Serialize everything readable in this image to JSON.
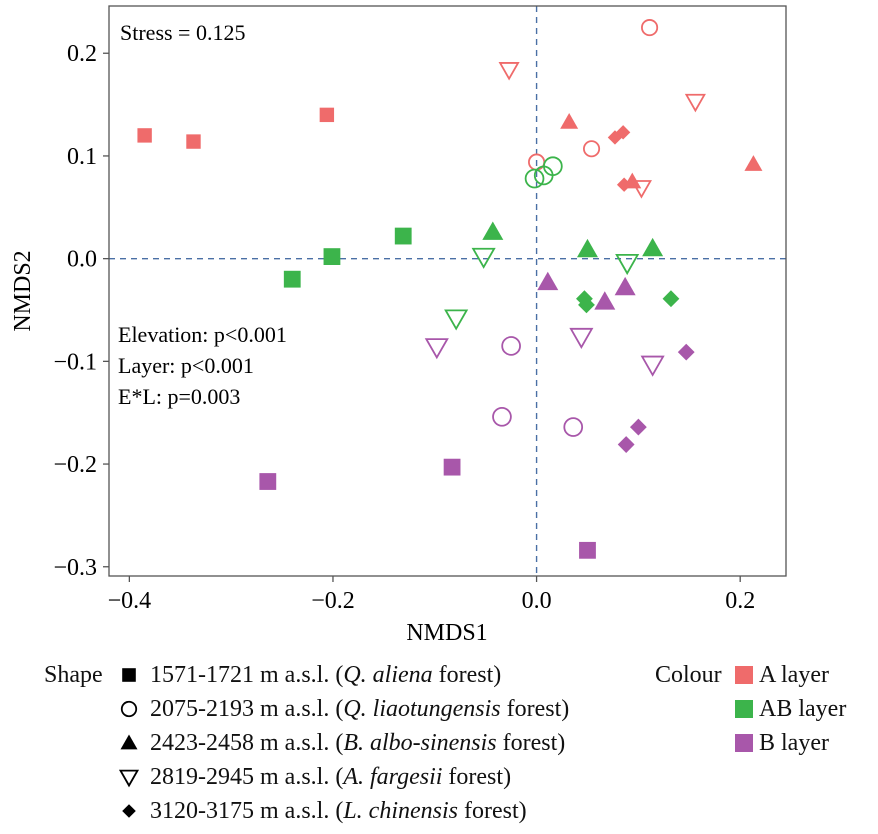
{
  "chart_data": {
    "type": "scatter",
    "title": "",
    "xlabel": "NMDS1",
    "ylabel": "NMDS2",
    "xlim": [
      -0.42,
      0.245
    ],
    "ylim": [
      -0.309,
      0.246
    ],
    "xticks": [
      -0.4,
      -0.2,
      0.0,
      0.2
    ],
    "xtick_labels": [
      "−0.4",
      "−0.2",
      "0.0",
      "0.2"
    ],
    "yticks": [
      -0.3,
      -0.2,
      -0.1,
      0.0,
      0.1,
      0.2
    ],
    "ytick_labels": [
      "−0.3",
      "−0.2",
      "−0.1",
      "0.0",
      "0.1",
      "0.2"
    ],
    "grid": false,
    "reference_lines": {
      "x": 0.0,
      "y": 0.0,
      "style": "dashed",
      "color": "#4a6fa5"
    },
    "annotations": {
      "stress": "Stress = 0.125",
      "elevation": "Elevation: p<0.001",
      "layer": "Layer: p<0.001",
      "interaction": "E*L: p=0.003"
    },
    "colors": {
      "A": "#ef6b6b",
      "AB": "#3cb44b",
      "B": "#a857aa"
    },
    "points": [
      {
        "layer": "A",
        "shape": "square",
        "x": -0.385,
        "y": 0.12
      },
      {
        "layer": "A",
        "shape": "square",
        "x": -0.337,
        "y": 0.114
      },
      {
        "layer": "A",
        "shape": "square",
        "x": -0.206,
        "y": 0.14
      },
      {
        "layer": "A",
        "shape": "circle",
        "x": 0.111,
        "y": 0.225
      },
      {
        "layer": "A",
        "shape": "circle",
        "x": 0.054,
        "y": 0.107
      },
      {
        "layer": "A",
        "shape": "circle",
        "x": 0.0,
        "y": 0.094
      },
      {
        "layer": "A",
        "shape": "triangle-up",
        "x": 0.032,
        "y": 0.133
      },
      {
        "layer": "A",
        "shape": "triangle-up",
        "x": 0.094,
        "y": 0.075
      },
      {
        "layer": "A",
        "shape": "triangle-up",
        "x": 0.213,
        "y": 0.092
      },
      {
        "layer": "A",
        "shape": "triangle-down",
        "x": -0.027,
        "y": 0.184
      },
      {
        "layer": "A",
        "shape": "triangle-down",
        "x": 0.156,
        "y": 0.153
      },
      {
        "layer": "A",
        "shape": "triangle-down",
        "x": 0.103,
        "y": 0.069
      },
      {
        "layer": "A",
        "shape": "diamond",
        "x": 0.077,
        "y": 0.118
      },
      {
        "layer": "A",
        "shape": "diamond",
        "x": 0.085,
        "y": 0.123
      },
      {
        "layer": "A",
        "shape": "diamond",
        "x": 0.086,
        "y": 0.072
      },
      {
        "layer": "AB",
        "shape": "square",
        "x": -0.24,
        "y": -0.02
      },
      {
        "layer": "AB",
        "shape": "square",
        "x": -0.201,
        "y": 0.002
      },
      {
        "layer": "AB",
        "shape": "square",
        "x": -0.131,
        "y": 0.022
      },
      {
        "layer": "AB",
        "shape": "circle",
        "x": -0.002,
        "y": 0.078
      },
      {
        "layer": "AB",
        "shape": "circle",
        "x": 0.007,
        "y": 0.081
      },
      {
        "layer": "AB",
        "shape": "circle",
        "x": 0.016,
        "y": 0.09
      },
      {
        "layer": "AB",
        "shape": "triangle-up",
        "x": -0.043,
        "y": 0.026
      },
      {
        "layer": "AB",
        "shape": "triangle-up",
        "x": 0.05,
        "y": 0.009
      },
      {
        "layer": "AB",
        "shape": "triangle-up",
        "x": 0.114,
        "y": 0.01
      },
      {
        "layer": "AB",
        "shape": "triangle-down",
        "x": -0.052,
        "y": 0.002
      },
      {
        "layer": "AB",
        "shape": "triangle-down",
        "x": -0.079,
        "y": -0.058
      },
      {
        "layer": "AB",
        "shape": "triangle-down",
        "x": 0.089,
        "y": -0.004
      },
      {
        "layer": "AB",
        "shape": "diamond",
        "x": 0.047,
        "y": -0.039
      },
      {
        "layer": "AB",
        "shape": "diamond",
        "x": 0.049,
        "y": -0.045
      },
      {
        "layer": "AB",
        "shape": "diamond",
        "x": 0.132,
        "y": -0.039
      },
      {
        "layer": "B",
        "shape": "square",
        "x": -0.264,
        "y": -0.217
      },
      {
        "layer": "B",
        "shape": "square",
        "x": -0.083,
        "y": -0.203
      },
      {
        "layer": "B",
        "shape": "square",
        "x": 0.05,
        "y": -0.284
      },
      {
        "layer": "B",
        "shape": "circle",
        "x": -0.025,
        "y": -0.085
      },
      {
        "layer": "B",
        "shape": "circle",
        "x": -0.034,
        "y": -0.154
      },
      {
        "layer": "B",
        "shape": "circle",
        "x": 0.036,
        "y": -0.164
      },
      {
        "layer": "B",
        "shape": "triangle-up",
        "x": 0.011,
        "y": -0.023
      },
      {
        "layer": "B",
        "shape": "triangle-up",
        "x": 0.067,
        "y": -0.042
      },
      {
        "layer": "B",
        "shape": "triangle-up",
        "x": 0.087,
        "y": -0.028
      },
      {
        "layer": "B",
        "shape": "triangle-down",
        "x": -0.098,
        "y": -0.086
      },
      {
        "layer": "B",
        "shape": "triangle-down",
        "x": 0.044,
        "y": -0.076
      },
      {
        "layer": "B",
        "shape": "triangle-down",
        "x": 0.114,
        "y": -0.103
      },
      {
        "layer": "B",
        "shape": "diamond",
        "x": 0.147,
        "y": -0.091
      },
      {
        "layer": "B",
        "shape": "diamond",
        "x": 0.1,
        "y": -0.164
      },
      {
        "layer": "B",
        "shape": "diamond",
        "x": 0.088,
        "y": -0.181
      }
    ],
    "legend_shape": {
      "title": "Shape",
      "items": [
        {
          "shape": "square",
          "range": "1571-1721 m a.s.l. (",
          "species": "Q. aliena",
          "suffix": " forest)"
        },
        {
          "shape": "circle",
          "range": "2075-2193 m a.s.l. (",
          "species": "Q. liaotungensis",
          "suffix": " forest)"
        },
        {
          "shape": "triangle-up",
          "range": "2423-2458 m a.s.l. (",
          "species": "B. albo-sinensis",
          "suffix": " forest)"
        },
        {
          "shape": "triangle-down",
          "range": "2819-2945 m a.s.l. (",
          "species": "A. fargesii",
          "suffix": " forest)"
        },
        {
          "shape": "diamond",
          "range": "3120-3175 m a.s.l. (",
          "species": "L. chinensis",
          "suffix": " forest)"
        }
      ]
    },
    "legend_colour": {
      "title": "Colour",
      "items": [
        {
          "layer": "A",
          "label": "A layer"
        },
        {
          "layer": "AB",
          "label": "AB layer"
        },
        {
          "layer": "B",
          "label": "B layer"
        }
      ]
    },
    "legend_placement": "bottom"
  }
}
